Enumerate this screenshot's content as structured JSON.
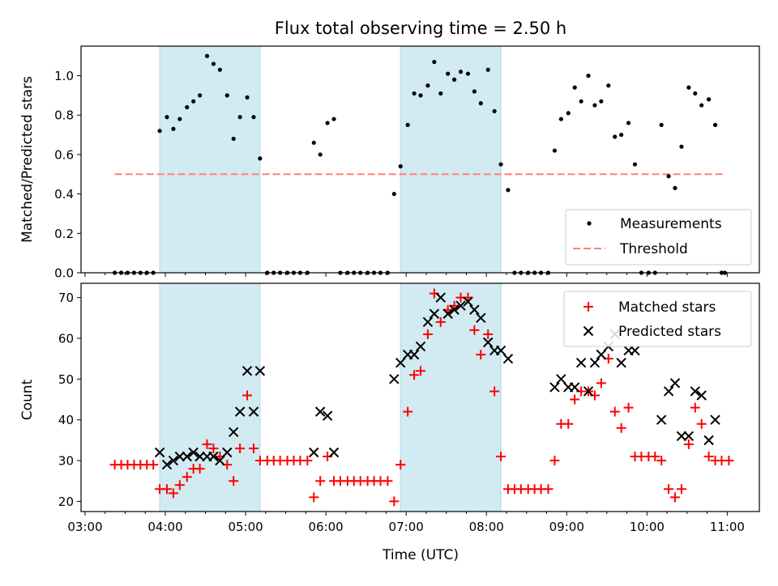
{
  "chart_data": [
    {
      "type": "scatter",
      "title": "Flux total observing time = 2.50 h",
      "xlabel": "",
      "ylabel": "Matched/Predicted stars",
      "x_unit": "hours UTC",
      "xlim": [
        2.95,
        11.4
      ],
      "ylim": [
        0,
        1.15
      ],
      "x_tick_labels": [
        "03:00",
        "04:00",
        "05:00",
        "06:00",
        "07:00",
        "08:00",
        "09:00",
        "10:00",
        "11:00"
      ],
      "y_ticks": [
        0.0,
        0.2,
        0.4,
        0.6,
        0.8,
        1.0
      ],
      "y_tick_labels": [
        "0.0",
        "0.2",
        "0.4",
        "0.6",
        "0.8",
        "1.0"
      ],
      "shaded_intervals": [
        [
          3.93,
          5.18
        ],
        [
          6.93,
          8.18
        ]
      ],
      "shade_color": "#add8e6",
      "threshold": {
        "name": "Threshold",
        "value": 0.5,
        "x_range": [
          3.37,
          10.97
        ],
        "color": "#ff7f7f"
      },
      "legend": {
        "position": "lower right",
        "entries": [
          "Measurements",
          "Threshold"
        ]
      },
      "series": [
        {
          "name": "Measurements",
          "color": "#000000",
          "marker": "dot",
          "points": [
            [
              3.37,
              0
            ],
            [
              3.45,
              0
            ],
            [
              3.53,
              0
            ],
            [
              3.61,
              0
            ],
            [
              3.69,
              0
            ],
            [
              3.77,
              0
            ],
            [
              3.85,
              0
            ],
            [
              3.93,
              0.72
            ],
            [
              4.02,
              0.79
            ],
            [
              4.1,
              0.73
            ],
            [
              4.18,
              0.78
            ],
            [
              4.27,
              0.84
            ],
            [
              4.35,
              0.87
            ],
            [
              4.43,
              0.9
            ],
            [
              4.52,
              1.1
            ],
            [
              4.6,
              1.06
            ],
            [
              4.68,
              1.03
            ],
            [
              4.77,
              0.9
            ],
            [
              4.85,
              0.68
            ],
            [
              4.93,
              0.79
            ],
            [
              5.02,
              0.89
            ],
            [
              5.1,
              0.79
            ],
            [
              5.18,
              0.58
            ],
            [
              5.27,
              0
            ],
            [
              5.35,
              0
            ],
            [
              5.43,
              0
            ],
            [
              5.52,
              0
            ],
            [
              5.6,
              0
            ],
            [
              5.68,
              0
            ],
            [
              5.77,
              0
            ],
            [
              5.85,
              0.66
            ],
            [
              5.93,
              0.6
            ],
            [
              6.02,
              0.76
            ],
            [
              6.1,
              0.78
            ],
            [
              6.18,
              0
            ],
            [
              6.27,
              0
            ],
            [
              6.35,
              0
            ],
            [
              6.43,
              0
            ],
            [
              6.52,
              0
            ],
            [
              6.6,
              0
            ],
            [
              6.68,
              0
            ],
            [
              6.77,
              0
            ],
            [
              6.85,
              0.4
            ],
            [
              6.93,
              0.54
            ],
            [
              7.02,
              0.75
            ],
            [
              7.1,
              0.91
            ],
            [
              7.18,
              0.9
            ],
            [
              7.27,
              0.95
            ],
            [
              7.35,
              1.07
            ],
            [
              7.43,
              0.91
            ],
            [
              7.52,
              1.01
            ],
            [
              7.6,
              0.98
            ],
            [
              7.68,
              1.02
            ],
            [
              7.77,
              1.01
            ],
            [
              7.85,
              0.92
            ],
            [
              7.93,
              0.86
            ],
            [
              8.02,
              1.03
            ],
            [
              8.1,
              0.82
            ],
            [
              8.18,
              0.55
            ],
            [
              8.27,
              0.42
            ],
            [
              8.35,
              0
            ],
            [
              8.43,
              0
            ],
            [
              8.52,
              0
            ],
            [
              8.6,
              0
            ],
            [
              8.68,
              0
            ],
            [
              8.77,
              0
            ],
            [
              8.85,
              0.62
            ],
            [
              8.93,
              0.78
            ],
            [
              9.02,
              0.81
            ],
            [
              9.1,
              0.94
            ],
            [
              9.18,
              0.87
            ],
            [
              9.27,
              1.0
            ],
            [
              9.35,
              0.85
            ],
            [
              9.43,
              0.87
            ],
            [
              9.52,
              0.95
            ],
            [
              9.6,
              0.69
            ],
            [
              9.68,
              0.7
            ],
            [
              9.77,
              0.76
            ],
            [
              9.85,
              0.55
            ],
            [
              9.93,
              0
            ],
            [
              10.02,
              0
            ],
            [
              10.1,
              0
            ],
            [
              10.18,
              0.75
            ],
            [
              10.27,
              0.49
            ],
            [
              10.35,
              0.43
            ],
            [
              10.43,
              0.64
            ],
            [
              10.52,
              0.94
            ],
            [
              10.6,
              0.91
            ],
            [
              10.68,
              0.85
            ],
            [
              10.77,
              0.88
            ],
            [
              10.85,
              0.75
            ],
            [
              10.93,
              0
            ],
            [
              10.97,
              0
            ]
          ]
        }
      ]
    },
    {
      "type": "scatter",
      "title": "",
      "xlabel": "Time (UTC)",
      "ylabel": "Count",
      "x_unit": "hours UTC",
      "xlim": [
        2.95,
        11.4
      ],
      "ylim": [
        17.5,
        73.5
      ],
      "x_tick_labels": [
        "03:00",
        "04:00",
        "05:00",
        "06:00",
        "07:00",
        "08:00",
        "09:00",
        "10:00",
        "11:00"
      ],
      "y_ticks": [
        20,
        30,
        40,
        50,
        60,
        70
      ],
      "y_tick_labels": [
        "20",
        "30",
        "40",
        "50",
        "60",
        "70"
      ],
      "shaded_intervals": [
        [
          3.93,
          5.18
        ],
        [
          6.93,
          8.18
        ]
      ],
      "shade_color": "#add8e6",
      "legend": {
        "position": "upper right",
        "entries": [
          "Matched stars",
          "Predicted stars"
        ]
      },
      "series": [
        {
          "name": "Matched stars",
          "color": "#ff0000",
          "marker": "plus",
          "points": [
            [
              3.37,
              29
            ],
            [
              3.45,
              29
            ],
            [
              3.53,
              29
            ],
            [
              3.61,
              29
            ],
            [
              3.69,
              29
            ],
            [
              3.77,
              29
            ],
            [
              3.85,
              29
            ],
            [
              3.93,
              23
            ],
            [
              4.02,
              23
            ],
            [
              4.1,
              22
            ],
            [
              4.18,
              24
            ],
            [
              4.27,
              26
            ],
            [
              4.35,
              28
            ],
            [
              4.43,
              28
            ],
            [
              4.52,
              34
            ],
            [
              4.6,
              33
            ],
            [
              4.68,
              31
            ],
            [
              4.77,
              29
            ],
            [
              4.85,
              25
            ],
            [
              4.93,
              33
            ],
            [
              5.02,
              46
            ],
            [
              5.1,
              33
            ],
            [
              5.18,
              30
            ],
            [
              5.27,
              30
            ],
            [
              5.35,
              30
            ],
            [
              5.43,
              30
            ],
            [
              5.52,
              30
            ],
            [
              5.6,
              30
            ],
            [
              5.68,
              30
            ],
            [
              5.77,
              30
            ],
            [
              5.85,
              21
            ],
            [
              5.93,
              25
            ],
            [
              6.02,
              31
            ],
            [
              6.1,
              25
            ],
            [
              6.18,
              25
            ],
            [
              6.27,
              25
            ],
            [
              6.35,
              25
            ],
            [
              6.43,
              25
            ],
            [
              6.52,
              25
            ],
            [
              6.6,
              25
            ],
            [
              6.68,
              25
            ],
            [
              6.77,
              25
            ],
            [
              6.85,
              20
            ],
            [
              6.93,
              29
            ],
            [
              7.02,
              42
            ],
            [
              7.1,
              51
            ],
            [
              7.18,
              52
            ],
            [
              7.27,
              61
            ],
            [
              7.35,
              71
            ],
            [
              7.43,
              64
            ],
            [
              7.52,
              67
            ],
            [
              7.6,
              68
            ],
            [
              7.68,
              70
            ],
            [
              7.77,
              70
            ],
            [
              7.85,
              62
            ],
            [
              7.93,
              56
            ],
            [
              8.02,
              61
            ],
            [
              8.1,
              47
            ],
            [
              8.18,
              31
            ],
            [
              8.27,
              23
            ],
            [
              8.35,
              23
            ],
            [
              8.43,
              23
            ],
            [
              8.52,
              23
            ],
            [
              8.6,
              23
            ],
            [
              8.68,
              23
            ],
            [
              8.77,
              23
            ],
            [
              8.85,
              30
            ],
            [
              8.93,
              39
            ],
            [
              9.02,
              39
            ],
            [
              9.1,
              45
            ],
            [
              9.18,
              47
            ],
            [
              9.27,
              47
            ],
            [
              9.35,
              46
            ],
            [
              9.43,
              49
            ],
            [
              9.52,
              55
            ],
            [
              9.6,
              42
            ],
            [
              9.68,
              38
            ],
            [
              9.77,
              43
            ],
            [
              9.85,
              31
            ],
            [
              9.93,
              31
            ],
            [
              10.02,
              31
            ],
            [
              10.1,
              31
            ],
            [
              10.18,
              30
            ],
            [
              10.27,
              23
            ],
            [
              10.35,
              21
            ],
            [
              10.43,
              23
            ],
            [
              10.52,
              34
            ],
            [
              10.6,
              43
            ],
            [
              10.68,
              39
            ],
            [
              10.77,
              31
            ],
            [
              10.85,
              30
            ],
            [
              10.93,
              30
            ],
            [
              11.02,
              30
            ]
          ]
        },
        {
          "name": "Predicted stars",
          "color": "#000000",
          "marker": "x",
          "points": [
            [
              3.93,
              32
            ],
            [
              4.02,
              29
            ],
            [
              4.1,
              30
            ],
            [
              4.18,
              31
            ],
            [
              4.27,
              31
            ],
            [
              4.35,
              32
            ],
            [
              4.43,
              31
            ],
            [
              4.52,
              31
            ],
            [
              4.6,
              31
            ],
            [
              4.68,
              30
            ],
            [
              4.77,
              32
            ],
            [
              4.85,
              37
            ],
            [
              4.93,
              42
            ],
            [
              5.02,
              52
            ],
            [
              5.1,
              42
            ],
            [
              5.18,
              52
            ],
            [
              5.85,
              32
            ],
            [
              5.93,
              42
            ],
            [
              6.02,
              41
            ],
            [
              6.1,
              32
            ],
            [
              6.85,
              50
            ],
            [
              6.93,
              54
            ],
            [
              7.02,
              56
            ],
            [
              7.1,
              56
            ],
            [
              7.18,
              58
            ],
            [
              7.27,
              64
            ],
            [
              7.35,
              66
            ],
            [
              7.43,
              70
            ],
            [
              7.52,
              66
            ],
            [
              7.6,
              67
            ],
            [
              7.68,
              68
            ],
            [
              7.77,
              69
            ],
            [
              7.85,
              67
            ],
            [
              7.93,
              65
            ],
            [
              8.02,
              59
            ],
            [
              8.1,
              57
            ],
            [
              8.18,
              57
            ],
            [
              8.27,
              55
            ],
            [
              8.85,
              48
            ],
            [
              8.93,
              50
            ],
            [
              9.02,
              48
            ],
            [
              9.1,
              48
            ],
            [
              9.18,
              54
            ],
            [
              9.27,
              47
            ],
            [
              9.35,
              54
            ],
            [
              9.43,
              56
            ],
            [
              9.52,
              58
            ],
            [
              9.6,
              61
            ],
            [
              9.68,
              54
            ],
            [
              9.77,
              57
            ],
            [
              9.85,
              57
            ],
            [
              10.18,
              40
            ],
            [
              10.27,
              47
            ],
            [
              10.35,
              49
            ],
            [
              10.43,
              36
            ],
            [
              10.52,
              36
            ],
            [
              10.6,
              47
            ],
            [
              10.68,
              46
            ],
            [
              10.77,
              35
            ],
            [
              10.85,
              40
            ]
          ]
        }
      ]
    }
  ]
}
